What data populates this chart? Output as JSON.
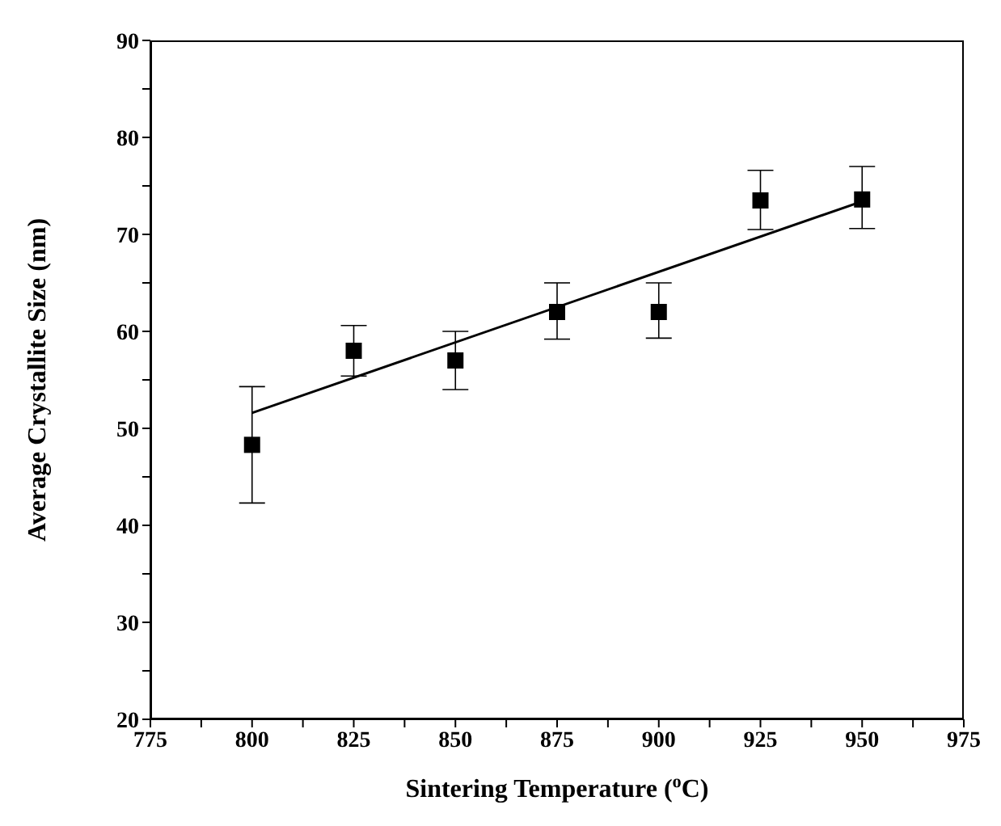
{
  "chart_data": {
    "type": "scatter",
    "xlabel": "Sintering Temperature ($^{o}$C)",
    "ylabel": "Average Crystallite Size (nm)",
    "x": [
      800,
      825,
      850,
      875,
      900,
      925,
      950
    ],
    "series": [
      {
        "color": "#000000",
        "values": [
          48.3,
          58,
          57,
          62,
          62,
          73.5,
          73.6
        ],
        "errors": [
          [
            42.3,
            54.3
          ],
          [
            55.4,
            60.6
          ],
          [
            54,
            60
          ],
          [
            59.2,
            65
          ],
          [
            59.3,
            65
          ],
          [
            70.5,
            76.6
          ],
          [
            70.6,
            77
          ]
        ],
        "marker": "square"
      },
      {
        "type": "line",
        "color": "#000000",
        "x": [
          800,
          950
        ],
        "values": [
          51.6,
          73.4
        ],
        "marker": "none",
        "line_style": "solid"
      }
    ],
    "xlim": [
      775,
      975
    ],
    "xticks": [
      775,
      {
        "value": 787.5,
        "label": null
      },
      800,
      {
        "value": 812.5,
        "label": null
      },
      825,
      {
        "value": 837.5,
        "label": null
      },
      850,
      {
        "value": 862.5,
        "label": null
      },
      875,
      {
        "value": 887.5,
        "label": null
      },
      900,
      {
        "value": 912.5,
        "label": null
      },
      925,
      {
        "value": 937.5,
        "label": null
      },
      950,
      {
        "value": 962.5,
        "label": null
      },
      975
    ],
    "ylim": [
      20,
      90
    ],
    "yticks": [
      20,
      {
        "value": 25,
        "label": null
      },
      30,
      {
        "value": 35,
        "label": null
      },
      40,
      {
        "value": 45,
        "label": null
      },
      50,
      {
        "value": 55,
        "label": null
      },
      60,
      {
        "value": 65,
        "label": null
      },
      70,
      {
        "value": 75,
        "label": null
      },
      80,
      {
        "value": 85,
        "label": null
      },
      90
    ],
    "grid": false,
    "legend": false
  }
}
